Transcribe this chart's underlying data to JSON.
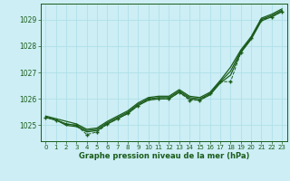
{
  "background_color": "#cceef4",
  "grid_color": "#aadde8",
  "line_color": "#1a5c1a",
  "text_color": "#1a5c1a",
  "xlabel": "Graphe pression niveau de la mer (hPa)",
  "ylim": [
    1024.4,
    1029.6
  ],
  "xlim": [
    -0.5,
    23.5
  ],
  "yticks": [
    1025,
    1026,
    1027,
    1028,
    1029
  ],
  "xticks": [
    0,
    1,
    2,
    3,
    4,
    5,
    6,
    7,
    8,
    9,
    10,
    11,
    12,
    13,
    14,
    15,
    16,
    17,
    18,
    19,
    20,
    21,
    22,
    23
  ],
  "smooth1": [
    1025.35,
    1025.25,
    1025.15,
    1025.05,
    1024.85,
    1024.9,
    1025.15,
    1025.35,
    1025.55,
    1025.85,
    1026.05,
    1026.1,
    1026.1,
    1026.35,
    1026.1,
    1026.05,
    1026.25,
    1026.7,
    1027.2,
    1027.85,
    1028.35,
    1029.05,
    1029.2,
    1029.4
  ],
  "smooth2": [
    1025.3,
    1025.2,
    1025.05,
    1025.0,
    1024.8,
    1024.85,
    1025.1,
    1025.3,
    1025.5,
    1025.8,
    1026.0,
    1026.05,
    1026.05,
    1026.3,
    1026.05,
    1026.0,
    1026.2,
    1026.65,
    1027.05,
    1027.8,
    1028.3,
    1029.0,
    1029.15,
    1029.35
  ],
  "smooth3": [
    1025.3,
    1025.2,
    1025.0,
    1024.95,
    1024.75,
    1024.8,
    1025.05,
    1025.25,
    1025.45,
    1025.75,
    1025.95,
    1026.0,
    1026.0,
    1026.25,
    1026.0,
    1025.95,
    1026.15,
    1026.6,
    1026.9,
    1027.75,
    1028.25,
    1028.95,
    1029.1,
    1029.3
  ],
  "dotted": [
    1025.3,
    1025.2,
    1025.05,
    1025.0,
    1024.65,
    1024.75,
    1025.05,
    1025.25,
    1025.45,
    1025.75,
    1026.0,
    1026.0,
    1026.0,
    1026.25,
    1025.95,
    1025.95,
    1026.2,
    1026.65,
    1026.65,
    1027.75,
    1028.3,
    1029.0,
    1029.1,
    1029.3
  ]
}
